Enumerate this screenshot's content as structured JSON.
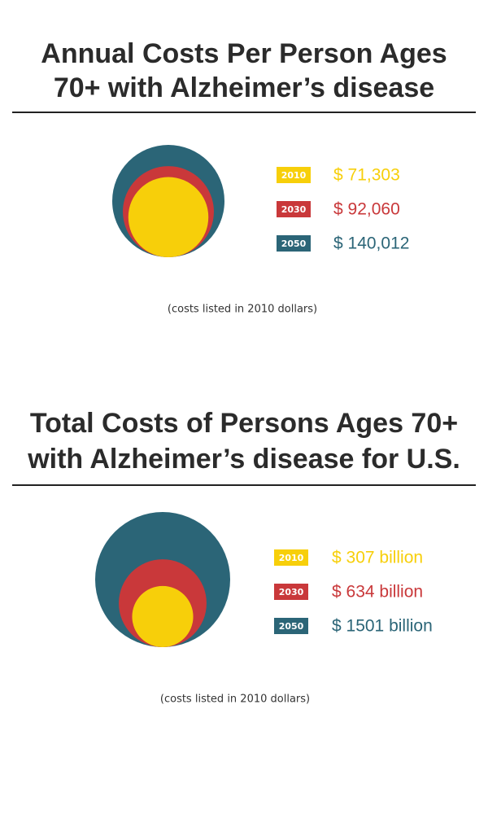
{
  "chart_data": [
    {
      "type": "nested-circles",
      "title": [
        "Annual Costs Per Person Ages",
        "70+ with Alzheimer’s disease"
      ],
      "categories": [
        "2010",
        "2030",
        "2050"
      ],
      "values": [
        71303,
        92060,
        140012
      ],
      "value_labels": [
        "$ 71,303",
        "$ 92,060",
        "$ 140,012"
      ],
      "colors": [
        "#f7cf0a",
        "#c9383a",
        "#2b6577"
      ],
      "note": "(costs listed in 2010 dollars)"
    },
    {
      "type": "nested-circles",
      "title": [
        "Total Costs of Persons Ages 70+",
        "with Alzheimer’s disease for U.S."
      ],
      "categories": [
        "2010",
        "2030",
        "2050"
      ],
      "values": [
        307,
        634,
        1501
      ],
      "value_labels": [
        "$ 307 billion",
        "$ 634 billion",
        "$ 1501 billion"
      ],
      "colors": [
        "#f7cf0a",
        "#c9383a",
        "#2b6577"
      ],
      "note": "(costs listed in 2010 dollars)"
    }
  ]
}
